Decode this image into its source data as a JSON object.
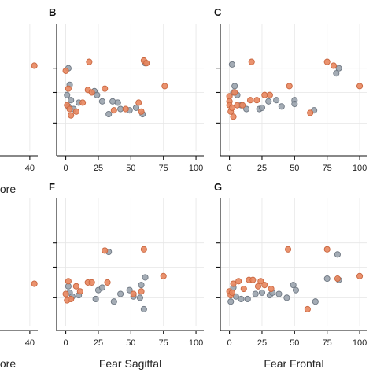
{
  "colors": {
    "orange": "#e8865e",
    "orange_edge": "#c9663f",
    "grey": "#9aa3ad",
    "grey_edge": "#6f7883"
  },
  "chart_data": [
    {
      "panel": "A",
      "type": "scatter",
      "panel_label": "",
      "xlabel": "ore",
      "xlim": [
        0,
        47
      ],
      "ylim": [
        0,
        1
      ],
      "xticks": [
        40
      ],
      "yticks": [],
      "series": [
        {
          "color_key": "orange",
          "points": [
            [
              44,
              0.67
            ]
          ]
        }
      ]
    },
    {
      "panel": "B",
      "type": "scatter",
      "panel_label": "B",
      "xlabel": "",
      "xlim": [
        -7,
        106
      ],
      "ylim": [
        0,
        1
      ],
      "xticks": [
        0,
        25,
        50,
        75,
        100
      ],
      "yticks": [
        0.22,
        0.46,
        0.65
      ],
      "series": [
        {
          "color_key": "grey",
          "points": [
            [
              2,
              0.65
            ],
            [
              3,
              0.52
            ],
            [
              1,
              0.44
            ],
            [
              4,
              0.4
            ],
            [
              2,
              0.35
            ],
            [
              6,
              0.33
            ],
            [
              10,
              0.38
            ],
            [
              22,
              0.47
            ],
            [
              24,
              0.44
            ],
            [
              28,
              0.39
            ],
            [
              33,
              0.29
            ],
            [
              36,
              0.39
            ],
            [
              40,
              0.38
            ],
            [
              42,
              0.33
            ],
            [
              49,
              0.32
            ],
            [
              54,
              0.34
            ],
            [
              59,
              0.29
            ],
            [
              61,
              0.69
            ]
          ]
        },
        {
          "color_key": "orange",
          "points": [
            [
              0,
              0.63
            ],
            [
              2,
              0.49
            ],
            [
              1,
              0.36
            ],
            [
              3,
              0.33
            ],
            [
              4,
              0.28
            ],
            [
              8,
              0.31
            ],
            [
              13,
              0.38
            ],
            [
              17,
              0.48
            ],
            [
              18,
              0.7
            ],
            [
              20,
              0.46
            ],
            [
              30,
              0.49
            ],
            [
              37,
              0.32
            ],
            [
              46,
              0.33
            ],
            [
              56,
              0.38
            ],
            [
              58,
              0.31
            ],
            [
              60,
              0.71
            ],
            [
              62,
              0.69
            ],
            [
              76,
              0.51
            ]
          ]
        }
      ]
    },
    {
      "panel": "C",
      "type": "scatter",
      "panel_label": "C",
      "xlabel": "",
      "xlim": [
        -7,
        106
      ],
      "ylim": [
        0,
        1
      ],
      "xticks": [
        0,
        25,
        50,
        75,
        100
      ],
      "yticks": [
        0.22,
        0.46,
        0.65
      ],
      "series": [
        {
          "color_key": "grey",
          "points": [
            [
              2,
              0.68
            ],
            [
              4,
              0.51
            ],
            [
              3,
              0.46
            ],
            [
              6,
              0.44
            ],
            [
              9,
              0.36
            ],
            [
              13,
              0.33
            ],
            [
              23,
              0.33
            ],
            [
              25,
              0.34
            ],
            [
              30,
              0.39
            ],
            [
              36,
              0.4
            ],
            [
              40,
              0.35
            ],
            [
              50,
              0.4
            ],
            [
              50,
              0.37
            ],
            [
              65,
              0.32
            ],
            [
              82,
              0.61
            ],
            [
              84,
              0.65
            ]
          ]
        },
        {
          "color_key": "orange",
          "points": [
            [
              0,
              0.43
            ],
            [
              0,
              0.39
            ],
            [
              0,
              0.36
            ],
            [
              1,
              0.31
            ],
            [
              2,
              0.34
            ],
            [
              3,
              0.27
            ],
            [
              4,
              0.46
            ],
            [
              6,
              0.36
            ],
            [
              10,
              0.36
            ],
            [
              16,
              0.4
            ],
            [
              17,
              0.7
            ],
            [
              21,
              0.4
            ],
            [
              27,
              0.44
            ],
            [
              31,
              0.44
            ],
            [
              46,
              0.51
            ],
            [
              62,
              0.3
            ],
            [
              75,
              0.7
            ],
            [
              80,
              0.67
            ],
            [
              100,
              0.51
            ]
          ]
        }
      ]
    },
    {
      "panel": "E",
      "type": "scatter",
      "panel_label": "",
      "xlabel": "ore",
      "xlim": [
        0,
        47
      ],
      "ylim": [
        0,
        1
      ],
      "xticks": [
        40
      ],
      "yticks": [],
      "series": [
        {
          "color_key": "orange",
          "points": [
            [
              44,
              0.33
            ]
          ]
        }
      ]
    },
    {
      "panel": "F",
      "type": "scatter",
      "panel_label": "F",
      "xlabel": "Fear Sagittal",
      "xlim": [
        -7,
        106
      ],
      "ylim": [
        0,
        1
      ],
      "xticks": [
        0,
        25,
        50,
        75,
        100
      ],
      "yticks": [
        0.22,
        0.46,
        0.65
      ],
      "series": [
        {
          "color_key": "grey",
          "points": [
            [
              2,
              0.31
            ],
            [
              3,
              0.26
            ],
            [
              5,
              0.23
            ],
            [
              10,
              0.24
            ],
            [
              23,
              0.21
            ],
            [
              25,
              0.28
            ],
            [
              28,
              0.3
            ],
            [
              33,
              0.58
            ],
            [
              37,
              0.19
            ],
            [
              42,
              0.25
            ],
            [
              49,
              0.28
            ],
            [
              52,
              0.23
            ],
            [
              57,
              0.22
            ],
            [
              58,
              0.32
            ],
            [
              60,
              0.13
            ],
            [
              61,
              0.38
            ]
          ]
        },
        {
          "color_key": "orange",
          "points": [
            [
              0,
              0.25
            ],
            [
              1,
              0.2
            ],
            [
              2,
              0.35
            ],
            [
              4,
              0.21
            ],
            [
              8,
              0.31
            ],
            [
              11,
              0.27
            ],
            [
              17,
              0.34
            ],
            [
              20,
              0.34
            ],
            [
              30,
              0.59
            ],
            [
              32,
              0.34
            ],
            [
              52,
              0.25
            ],
            [
              58,
              0.27
            ],
            [
              60,
              0.6
            ],
            [
              75,
              0.39
            ]
          ]
        }
      ]
    },
    {
      "panel": "G",
      "type": "scatter",
      "panel_label": "G",
      "xlabel": "Fear Frontal",
      "xlim": [
        -7,
        106
      ],
      "ylim": [
        0,
        1
      ],
      "xticks": [
        0,
        25,
        50,
        75,
        100
      ],
      "yticks": [
        0.22,
        0.46,
        0.65
      ],
      "series": [
        {
          "color_key": "grey",
          "points": [
            [
              1,
              0.19
            ],
            [
              3,
              0.3
            ],
            [
              5,
              0.23
            ],
            [
              9,
              0.21
            ],
            [
              14,
              0.21
            ],
            [
              20,
              0.25
            ],
            [
              25,
              0.26
            ],
            [
              31,
              0.24
            ],
            [
              33,
              0.26
            ],
            [
              38,
              0.25
            ],
            [
              44,
              0.22
            ],
            [
              49,
              0.32
            ],
            [
              51,
              0.28
            ],
            [
              66,
              0.19
            ],
            [
              75,
              0.37
            ],
            [
              83,
              0.56
            ],
            [
              84,
              0.36
            ]
          ]
        },
        {
          "color_key": "orange",
          "points": [
            [
              0,
              0.27
            ],
            [
              1,
              0.24
            ],
            [
              2,
              0.26
            ],
            [
              3,
              0.33
            ],
            [
              7,
              0.35
            ],
            [
              11,
              0.29
            ],
            [
              15,
              0.36
            ],
            [
              18,
              0.36
            ],
            [
              22,
              0.31
            ],
            [
              24,
              0.35
            ],
            [
              27,
              0.32
            ],
            [
              32,
              0.29
            ],
            [
              45,
              0.6
            ],
            [
              60,
              0.13
            ],
            [
              75,
              0.6
            ],
            [
              83,
              0.37
            ],
            [
              100,
              0.39
            ]
          ]
        }
      ]
    }
  ]
}
